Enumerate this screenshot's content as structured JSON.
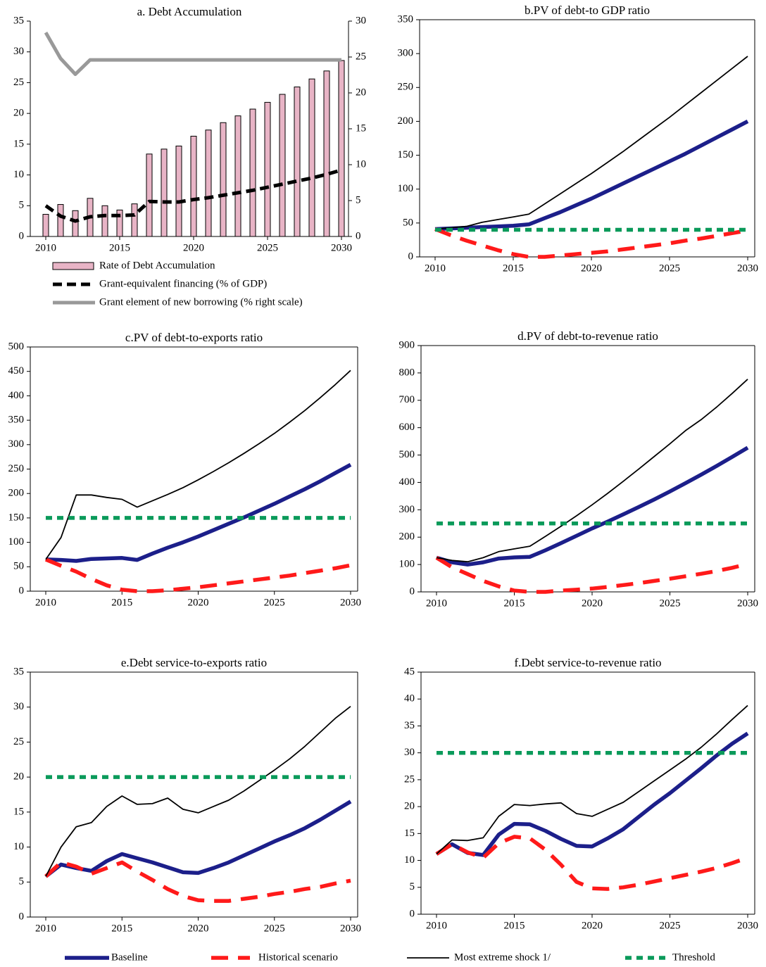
{
  "chart_data": [
    {
      "type": "bar",
      "title": "a. Debt Accumulation",
      "xlim": [
        2010,
        2030
      ],
      "xticks": [
        2010,
        2015,
        2020,
        2025,
        2030
      ],
      "ylim": [
        0,
        35
      ],
      "yticks": [
        0,
        5,
        10,
        15,
        20,
        25,
        30,
        35
      ],
      "y2lim": [
        0,
        30
      ],
      "y2ticks": [
        0,
        5,
        10,
        15,
        20,
        25,
        30
      ],
      "x": [
        2010,
        2011,
        2012,
        2013,
        2014,
        2015,
        2016,
        2017,
        2018,
        2019,
        2020,
        2021,
        2022,
        2023,
        2024,
        2025,
        2026,
        2027,
        2028,
        2029,
        2030
      ],
      "series": [
        {
          "name": "Rate of Debt Accumulation",
          "type": "bar",
          "color": "#e8b4c6",
          "values": [
            3.6,
            5.2,
            4.2,
            6.2,
            5.0,
            4.3,
            5.3,
            13.4,
            14.2,
            14.7,
            16.3,
            17.3,
            18.5,
            19.6,
            20.7,
            21.8,
            23.1,
            24.3,
            25.6,
            26.9,
            28.6
          ]
        },
        {
          "name": "Grant-equivalent financing (% of GDP)",
          "type": "line",
          "color": "#000000",
          "values": [
            5.0,
            3.3,
            2.5,
            3.2,
            3.4,
            3.4,
            3.5,
            5.7,
            5.6,
            5.6,
            6.0,
            6.3,
            6.7,
            7.1,
            7.5,
            8.0,
            8.5,
            9.0,
            9.5,
            10.1,
            10.8
          ]
        },
        {
          "name": "Grant element of new borrowing (% right scale)",
          "type": "line",
          "axis": "y2",
          "color": "#999999",
          "values": [
            28.4,
            24.8,
            22.6,
            24.6,
            24.6,
            24.6,
            24.6,
            24.6,
            24.6,
            24.6,
            24.6,
            24.6,
            24.6,
            24.6,
            24.6,
            24.6,
            24.6,
            24.6,
            24.6,
            24.6,
            24.6
          ]
        }
      ]
    },
    {
      "type": "line",
      "title": "b.PV of debt-to GDP ratio",
      "xlim": [
        2010,
        2030
      ],
      "xticks": [
        2010,
        2015,
        2020,
        2025,
        2030
      ],
      "ylim": [
        0,
        350
      ],
      "yticks": [
        0,
        50,
        100,
        150,
        200,
        250,
        300,
        350
      ],
      "x": [
        2010,
        2011,
        2012,
        2013,
        2014,
        2015,
        2016,
        2017,
        2018,
        2019,
        2020,
        2021,
        2022,
        2023,
        2024,
        2025,
        2026,
        2027,
        2028,
        2029,
        2030
      ],
      "series": [
        {
          "values": [
            41,
            42,
            43,
            44,
            45,
            46,
            48,
            57,
            66,
            76,
            86,
            97,
            108,
            119,
            130,
            141,
            152,
            164,
            176,
            188,
            200
          ]
        },
        {
          "values": [
            41,
            32,
            24,
            17,
            10,
            4,
            0,
            0,
            2,
            4,
            6,
            8,
            11,
            14,
            17,
            20,
            24,
            27,
            31,
            35,
            39
          ]
        },
        {
          "values": [
            41,
            43,
            45,
            51,
            55,
            59,
            63,
            78,
            93,
            108,
            123,
            139,
            155,
            172,
            189,
            206,
            224,
            242,
            260,
            278,
            296
          ]
        },
        {
          "values": [
            40,
            40,
            40,
            40,
            40,
            40,
            40,
            40,
            40,
            40,
            40,
            40,
            40,
            40,
            40,
            40,
            40,
            40,
            40,
            40,
            40
          ]
        }
      ]
    },
    {
      "type": "line",
      "title": "c.PV of debt-to-exports ratio",
      "xlim": [
        2010,
        2030
      ],
      "xticks": [
        2010,
        2015,
        2020,
        2025,
        2030
      ],
      "ylim": [
        0,
        500
      ],
      "yticks": [
        0,
        50,
        100,
        150,
        200,
        250,
        300,
        350,
        400,
        450,
        500
      ],
      "x": [
        2010,
        2011,
        2012,
        2013,
        2014,
        2015,
        2016,
        2017,
        2018,
        2019,
        2020,
        2021,
        2022,
        2023,
        2024,
        2025,
        2026,
        2027,
        2028,
        2029,
        2030
      ],
      "series": [
        {
          "values": [
            65,
            64,
            62,
            66,
            67,
            68,
            64,
            77,
            89,
            100,
            112,
            125,
            138,
            151,
            165,
            179,
            194,
            209,
            225,
            242,
            259
          ]
        },
        {
          "values": [
            65,
            52,
            40,
            25,
            12,
            3,
            0,
            0,
            2,
            5,
            8,
            12,
            16,
            20,
            24,
            28,
            32,
            37,
            42,
            47,
            53
          ]
        },
        {
          "values": [
            65,
            110,
            197,
            197,
            192,
            188,
            172,
            185,
            198,
            212,
            228,
            245,
            263,
            282,
            302,
            323,
            346,
            370,
            396,
            423,
            452
          ]
        },
        {
          "values": [
            150,
            150,
            150,
            150,
            150,
            150,
            150,
            150,
            150,
            150,
            150,
            150,
            150,
            150,
            150,
            150,
            150,
            150,
            150,
            150,
            150
          ]
        }
      ]
    },
    {
      "type": "line",
      "title": "d.PV of debt-to-revenue ratio",
      "xlim": [
        2010,
        2030
      ],
      "xticks": [
        2010,
        2015,
        2020,
        2025,
        2030
      ],
      "ylim": [
        0,
        900
      ],
      "yticks": [
        0,
        100,
        200,
        300,
        400,
        500,
        600,
        700,
        800,
        900
      ],
      "x": [
        2010,
        2011,
        2012,
        2013,
        2014,
        2015,
        2016,
        2017,
        2018,
        2019,
        2020,
        2021,
        2022,
        2023,
        2024,
        2025,
        2026,
        2027,
        2028,
        2029,
        2030
      ],
      "series": [
        {
          "values": [
            125,
            108,
            100,
            108,
            122,
            126,
            128,
            152,
            178,
            205,
            232,
            257,
            283,
            310,
            338,
            367,
            397,
            428,
            460,
            493,
            527
          ]
        },
        {
          "values": [
            125,
            90,
            65,
            40,
            20,
            5,
            0,
            0,
            5,
            8,
            12,
            18,
            25,
            32,
            40,
            48,
            57,
            66,
            76,
            88,
            102
          ]
        },
        {
          "values": [
            125,
            115,
            110,
            125,
            147,
            157,
            167,
            203,
            240,
            278,
            318,
            360,
            404,
            449,
            495,
            541,
            589,
            629,
            675,
            725,
            777
          ]
        },
        {
          "values": [
            250,
            250,
            250,
            250,
            250,
            250,
            250,
            250,
            250,
            250,
            250,
            250,
            250,
            250,
            250,
            250,
            250,
            250,
            250,
            250,
            250
          ]
        }
      ]
    },
    {
      "type": "line",
      "title": "e.Debt service-to-exports ratio",
      "xlim": [
        2010,
        2030
      ],
      "xticks": [
        2010,
        2015,
        2020,
        2025,
        2030
      ],
      "ylim": [
        0,
        35
      ],
      "yticks": [
        0,
        5,
        10,
        15,
        20,
        25,
        30,
        35
      ],
      "x": [
        2010,
        2011,
        2012,
        2013,
        2014,
        2015,
        2016,
        2017,
        2018,
        2019,
        2020,
        2021,
        2022,
        2023,
        2024,
        2025,
        2026,
        2027,
        2028,
        2029,
        2030
      ],
      "series": [
        {
          "values": [
            5.8,
            7.5,
            7.0,
            6.6,
            8.0,
            9.0,
            8.4,
            7.8,
            7.1,
            6.4,
            6.3,
            7.0,
            7.8,
            8.8,
            9.8,
            10.8,
            11.7,
            12.7,
            13.9,
            15.2,
            16.5
          ]
        },
        {
          "values": [
            5.8,
            7.8,
            7.2,
            6.2,
            7.0,
            7.8,
            6.5,
            5.3,
            4.0,
            3.0,
            2.4,
            2.3,
            2.3,
            2.6,
            2.9,
            3.3,
            3.6,
            4.0,
            4.3,
            4.8,
            5.2
          ]
        },
        {
          "values": [
            5.8,
            10.0,
            12.9,
            13.5,
            15.8,
            17.3,
            16.1,
            16.2,
            17.0,
            15.4,
            14.9,
            15.8,
            16.7,
            18.0,
            19.5,
            21.0,
            22.6,
            24.4,
            26.4,
            28.4,
            30.1
          ]
        },
        {
          "values": [
            20,
            20,
            20,
            20,
            20,
            20,
            20,
            20,
            20,
            20,
            20,
            20,
            20,
            20,
            20,
            20,
            20,
            20,
            20,
            20,
            20
          ]
        }
      ]
    },
    {
      "type": "line",
      "title": "f.Debt service-to-revenue ratio",
      "xlim": [
        2010,
        2030
      ],
      "xticks": [
        2010,
        2015,
        2020,
        2025,
        2030
      ],
      "ylim": [
        0,
        45
      ],
      "yticks": [
        0,
        5,
        10,
        15,
        20,
        25,
        30,
        35,
        40,
        45
      ],
      "x": [
        2010,
        2011,
        2012,
        2013,
        2014,
        2015,
        2016,
        2017,
        2018,
        2019,
        2020,
        2021,
        2022,
        2023,
        2024,
        2025,
        2026,
        2027,
        2028,
        2029,
        2030
      ],
      "series": [
        {
          "values": [
            11.2,
            13.0,
            11.4,
            11.0,
            14.8,
            16.8,
            16.7,
            15.5,
            14.0,
            12.7,
            12.6,
            14.1,
            15.8,
            18.1,
            20.4,
            22.5,
            24.8,
            27.1,
            29.5,
            31.7,
            33.6
          ]
        },
        {
          "values": [
            11.2,
            13.0,
            11.5,
            10.5,
            13.2,
            14.4,
            14.1,
            12.0,
            9.2,
            6.0,
            4.8,
            4.7,
            5.0,
            5.5,
            6.1,
            6.7,
            7.3,
            7.9,
            8.6,
            9.5,
            10.5
          ]
        },
        {
          "values": [
            11.2,
            13.8,
            13.7,
            14.2,
            18.2,
            20.4,
            20.2,
            20.5,
            20.7,
            18.7,
            18.2,
            19.5,
            20.8,
            22.8,
            24.8,
            26.8,
            28.8,
            31.0,
            33.5,
            36.2,
            38.8
          ]
        },
        {
          "values": [
            30,
            30,
            30,
            30,
            30,
            30,
            30,
            30,
            30,
            30,
            30,
            30,
            30,
            30,
            30,
            30,
            30,
            30,
            30,
            30,
            30
          ]
        }
      ]
    }
  ],
  "legend": [
    {
      "name": "Baseline",
      "color": "#1c1f8a"
    },
    {
      "name": "Historical scenario",
      "color": "#ff1a1a"
    },
    {
      "name": "Most extreme shock  1/",
      "color": "#000000"
    },
    {
      "name": "Threshold",
      "color": "#0a9a5a"
    }
  ]
}
